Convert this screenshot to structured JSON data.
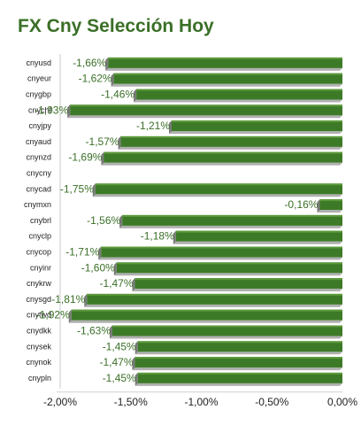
{
  "chart_data": {
    "type": "bar",
    "orientation": "horizontal",
    "title": "FX Cny Selección Hoy",
    "categories": [
      "cnyusd",
      "cnyeur",
      "cnygbp",
      "cnychf",
      "cnyjpy",
      "cnyaud",
      "cnynzd",
      "cnycny",
      "cnycad",
      "cnymxn",
      "cnybrl",
      "cnyclp",
      "cnycop",
      "cnyinr",
      "cnykrw",
      "cnysgd",
      "cnytwd",
      "cnydkk",
      "cnysek",
      "cnynok",
      "cnypln"
    ],
    "values": [
      -1.66,
      -1.62,
      -1.46,
      -1.93,
      -1.21,
      -1.57,
      -1.69,
      0,
      -1.75,
      -0.16,
      -1.56,
      -1.18,
      -1.71,
      -1.6,
      -1.47,
      -1.81,
      -1.92,
      -1.63,
      -1.45,
      -1.47,
      -1.45
    ],
    "value_labels": [
      "-1,66%",
      "-1,62%",
      "-1,46%",
      "-1,93%",
      "-1,21%",
      "-1,57%",
      "-1,69%",
      "",
      "-1,75%",
      "-0,16%",
      "-1,56%",
      "-1,18%",
      "-1,71%",
      "-1,60%",
      "-1,47%",
      "-1,81%",
      "-1,92%",
      "-1,63%",
      "-1,45%",
      "-1,47%",
      "-1,45%"
    ],
    "xlim": [
      -2.0,
      0.0
    ],
    "xticks": [
      -2.0,
      -1.5,
      -1.0,
      -0.5,
      0.0
    ],
    "xtick_labels": [
      "-2,00%",
      "-1,50%",
      "-1,00%",
      "-0,50%",
      "0,00%"
    ],
    "xlabel": "",
    "ylabel": "",
    "grid": false,
    "legend": "none",
    "colors": {
      "bar": "#3d7a27",
      "bar_top": "#5d9a3c",
      "bar_shadow": "#b0b0b0",
      "title": "#3a6f27",
      "label": "#3a6f27"
    }
  }
}
